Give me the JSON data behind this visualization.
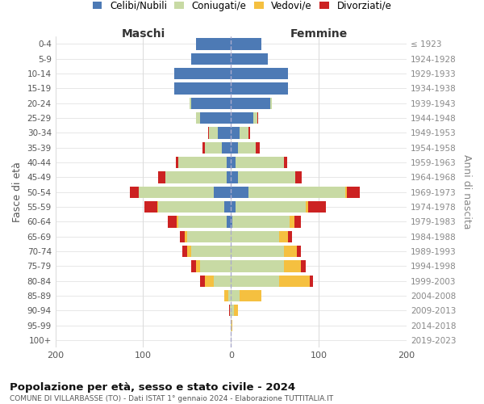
{
  "age_groups": [
    "0-4",
    "5-9",
    "10-14",
    "15-19",
    "20-24",
    "25-29",
    "30-34",
    "35-39",
    "40-44",
    "45-49",
    "50-54",
    "55-59",
    "60-64",
    "65-69",
    "70-74",
    "75-79",
    "80-84",
    "85-89",
    "90-94",
    "95-99",
    "100+"
  ],
  "birth_years": [
    "2019-2023",
    "2014-2018",
    "2009-2013",
    "2004-2008",
    "1999-2003",
    "1994-1998",
    "1989-1993",
    "1984-1988",
    "1979-1983",
    "1974-1978",
    "1969-1973",
    "1964-1968",
    "1959-1963",
    "1954-1958",
    "1949-1953",
    "1944-1948",
    "1939-1943",
    "1934-1938",
    "1929-1933",
    "1924-1928",
    "≤ 1923"
  ],
  "male": {
    "celibi": [
      40,
      45,
      65,
      65,
      45,
      35,
      15,
      10,
      5,
      5,
      20,
      8,
      5,
      0,
      0,
      0,
      0,
      0,
      0,
      0,
      0
    ],
    "coniugati": [
      0,
      0,
      0,
      0,
      2,
      5,
      10,
      20,
      55,
      70,
      85,
      75,
      55,
      50,
      45,
      35,
      20,
      3,
      1,
      0,
      0
    ],
    "vedovi": [
      0,
      0,
      0,
      0,
      0,
      0,
      0,
      0,
      0,
      0,
      0,
      1,
      2,
      3,
      5,
      5,
      10,
      5,
      0,
      0,
      0
    ],
    "divorziati": [
      0,
      0,
      0,
      0,
      0,
      0,
      1,
      2,
      3,
      8,
      10,
      15,
      10,
      5,
      5,
      5,
      5,
      0,
      1,
      0,
      0
    ]
  },
  "female": {
    "nubili": [
      35,
      42,
      65,
      65,
      45,
      25,
      10,
      8,
      5,
      8,
      20,
      5,
      2,
      0,
      0,
      0,
      0,
      0,
      0,
      0,
      0
    ],
    "coniugate": [
      0,
      0,
      0,
      0,
      2,
      5,
      10,
      20,
      55,
      65,
      110,
      80,
      65,
      55,
      60,
      60,
      55,
      10,
      3,
      1,
      0
    ],
    "vedove": [
      0,
      0,
      0,
      0,
      0,
      0,
      0,
      0,
      0,
      0,
      2,
      3,
      5,
      10,
      15,
      20,
      35,
      25,
      5,
      1,
      0
    ],
    "divorziate": [
      0,
      0,
      0,
      0,
      0,
      1,
      2,
      5,
      4,
      8,
      15,
      20,
      8,
      5,
      5,
      5,
      3,
      0,
      0,
      0,
      0
    ]
  },
  "colors": {
    "celibi_nubili": "#4d7ab5",
    "coniugati": "#c8daa4",
    "vedovi": "#f5c040",
    "divorziati": "#cc2222"
  },
  "title": "Popolazione per età, sesso e stato civile - 2024",
  "subtitle": "COMUNE DI VILLARBASSE (TO) - Dati ISTAT 1° gennaio 2024 - Elaborazione TUTTITALIA.IT",
  "xlabel_left": "Maschi",
  "xlabel_right": "Femmine",
  "ylabel_left": "Fasce di età",
  "ylabel_right": "Anni di nascita",
  "xlim": 200,
  "legend_labels": [
    "Celibi/Nubili",
    "Coniugati/e",
    "Vedovi/e",
    "Divorziati/e"
  ]
}
